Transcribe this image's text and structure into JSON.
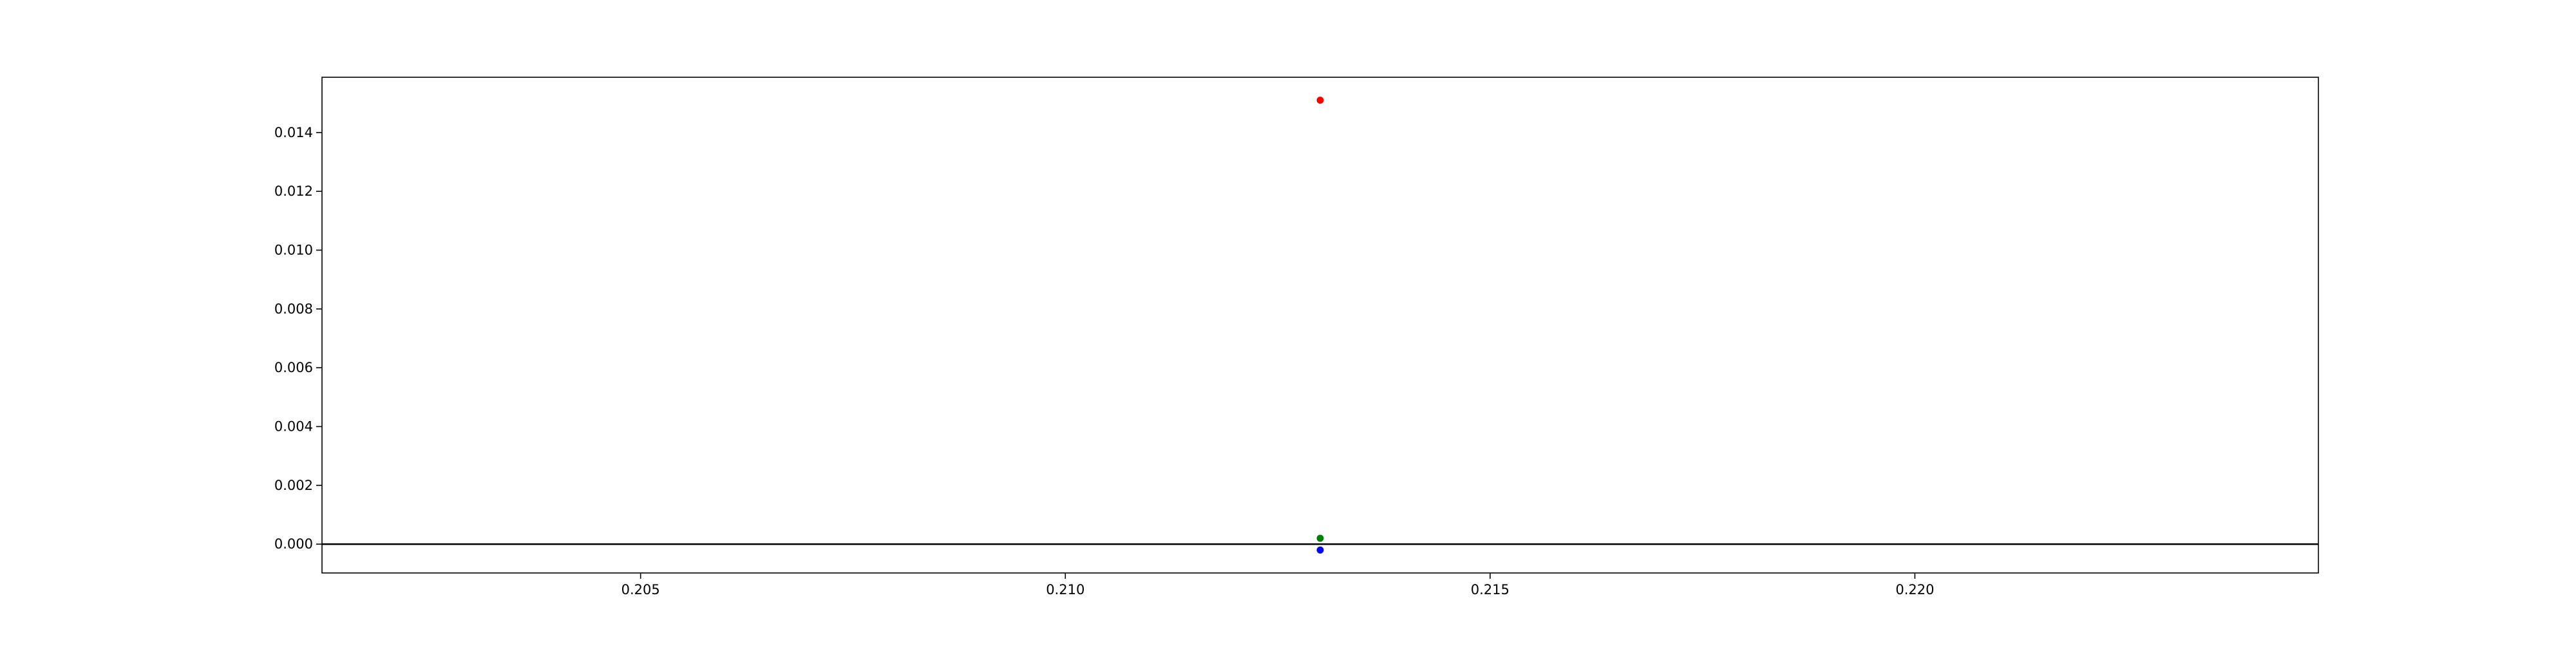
{
  "chart_data": {
    "type": "scatter",
    "title": "",
    "xlabel": "",
    "ylabel": "",
    "xlim": [
      0.20125,
      0.22475
    ],
    "ylim": [
      -0.00098,
      0.01588
    ],
    "x_ticks": [
      "0.205",
      "0.210",
      "0.215",
      "0.220"
    ],
    "y_ticks": [
      "0.000",
      "0.002",
      "0.004",
      "0.006",
      "0.008",
      "0.010",
      "0.012",
      "0.014"
    ],
    "grid": false,
    "horizontal_line": {
      "y": 0.0,
      "color": "#000000"
    },
    "series": [
      {
        "color": "#ff0000",
        "points": [
          [
            0.213,
            0.0151
          ]
        ]
      },
      {
        "color": "#008000",
        "points": [
          [
            0.213,
            0.0002
          ]
        ]
      },
      {
        "color": "#0000ff",
        "points": [
          [
            0.213,
            -0.0002
          ]
        ]
      }
    ]
  }
}
